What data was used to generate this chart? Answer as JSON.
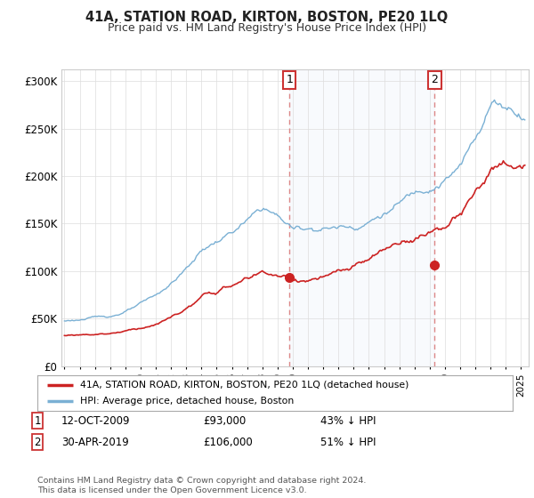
{
  "title": "41A, STATION ROAD, KIRTON, BOSTON, PE20 1LQ",
  "subtitle": "Price paid vs. HM Land Registry's House Price Index (HPI)",
  "background_color": "#ffffff",
  "plot_background": "#ffffff",
  "ylabel_ticks": [
    "£0",
    "£50K",
    "£100K",
    "£150K",
    "£200K",
    "£250K",
    "£300K"
  ],
  "ytick_values": [
    0,
    50000,
    100000,
    150000,
    200000,
    250000,
    300000
  ],
  "ylim": [
    0,
    312000
  ],
  "xlim_start": 1994.8,
  "xlim_end": 2025.5,
  "sale1_x": 2009.79,
  "sale1_y": 93000,
  "sale2_x": 2019.33,
  "sale2_y": 106000,
  "legend_entries": [
    "41A, STATION ROAD, KIRTON, BOSTON, PE20 1LQ (detached house)",
    "HPI: Average price, detached house, Boston"
  ],
  "footer": "Contains HM Land Registry data © Crown copyright and database right 2024.\nThis data is licensed under the Open Government Licence v3.0.",
  "line_color_hpi": "#7ab0d4",
  "line_color_paid": "#cc2222",
  "dashed_line_color": "#dd8888",
  "shade_color": "#dde8f5",
  "marker_color": "#cc2222"
}
